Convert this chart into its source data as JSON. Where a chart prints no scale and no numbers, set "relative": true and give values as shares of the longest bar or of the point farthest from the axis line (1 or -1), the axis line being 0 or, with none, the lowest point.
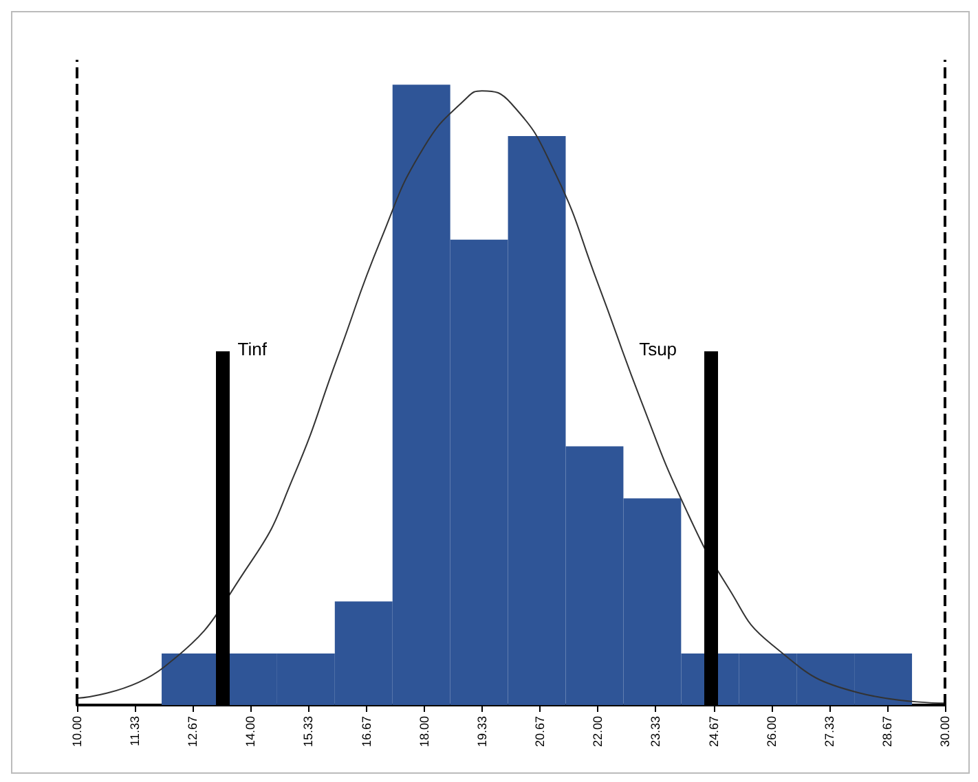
{
  "chart_data": {
    "type": "histogram",
    "relative": true,
    "tick_labels": "x",
    "grid": false,
    "legend": false,
    "bins": [
      11.95,
      13.28,
      14.61,
      15.94,
      17.27,
      18.6,
      19.93,
      21.26,
      22.59,
      23.92,
      25.25,
      26.58,
      27.91,
      29.24
    ],
    "values": [
      0.083,
      0.083,
      0.083,
      0.167,
      1,
      0.75,
      0.917,
      0.417,
      0.333,
      0.083,
      0.083,
      0.083,
      0.083
    ],
    "color": "#2f5597",
    "series": [
      {
        "type": "line",
        "color": "#333333",
        "marker": "none",
        "line_style": "solid",
        "x": [
          10,
          12,
          14,
          15,
          16,
          17,
          18,
          19,
          19.33,
          20,
          21,
          22,
          23,
          24,
          25,
          26,
          28,
          30
        ],
        "values": [
          0.011,
          0.061,
          0.23,
          0.37,
          0.56,
          0.75,
          0.9,
          0.98,
          0.99,
          0.97,
          0.86,
          0.68,
          0.49,
          0.32,
          0.19,
          0.098,
          0.02,
          0.003
        ]
      }
    ],
    "xlim": [
      10,
      30
    ],
    "xticks": [
      {
        "value": 10,
        "label": "10.00"
      },
      {
        "value": 11.33,
        "label": "11.33"
      },
      {
        "value": 12.67,
        "label": "12.67"
      },
      {
        "value": 14,
        "label": "14.00"
      },
      {
        "value": 15.33,
        "label": "15.33"
      },
      {
        "value": 16.67,
        "label": "16.67"
      },
      {
        "value": 18,
        "label": "18.00"
      },
      {
        "value": 19.33,
        "label": "19.33"
      },
      {
        "value": 20.67,
        "label": "20.67"
      },
      {
        "value": 22,
        "label": "22.00"
      },
      {
        "value": 23.33,
        "label": "23.33"
      },
      {
        "value": 24.67,
        "label": "24.67"
      },
      {
        "value": 26,
        "label": "26.00"
      },
      {
        "value": 27.33,
        "label": "27.33"
      },
      {
        "value": 28.67,
        "label": "28.67"
      },
      {
        "value": 30,
        "label": "30.00"
      }
    ],
    "ref_lines": [
      {
        "axis": "x",
        "value": 10,
        "line_style": "dashed",
        "color": "#000000"
      },
      {
        "axis": "x",
        "value": 13.34,
        "label": "Tinf",
        "line_style": "solid",
        "color": "#000000"
      },
      {
        "axis": "x",
        "value": 24.59,
        "label": "Tsup",
        "line_style": "solid",
        "color": "#000000"
      },
      {
        "axis": "x",
        "value": 30,
        "line_style": "dashed",
        "color": "#000000"
      }
    ]
  }
}
